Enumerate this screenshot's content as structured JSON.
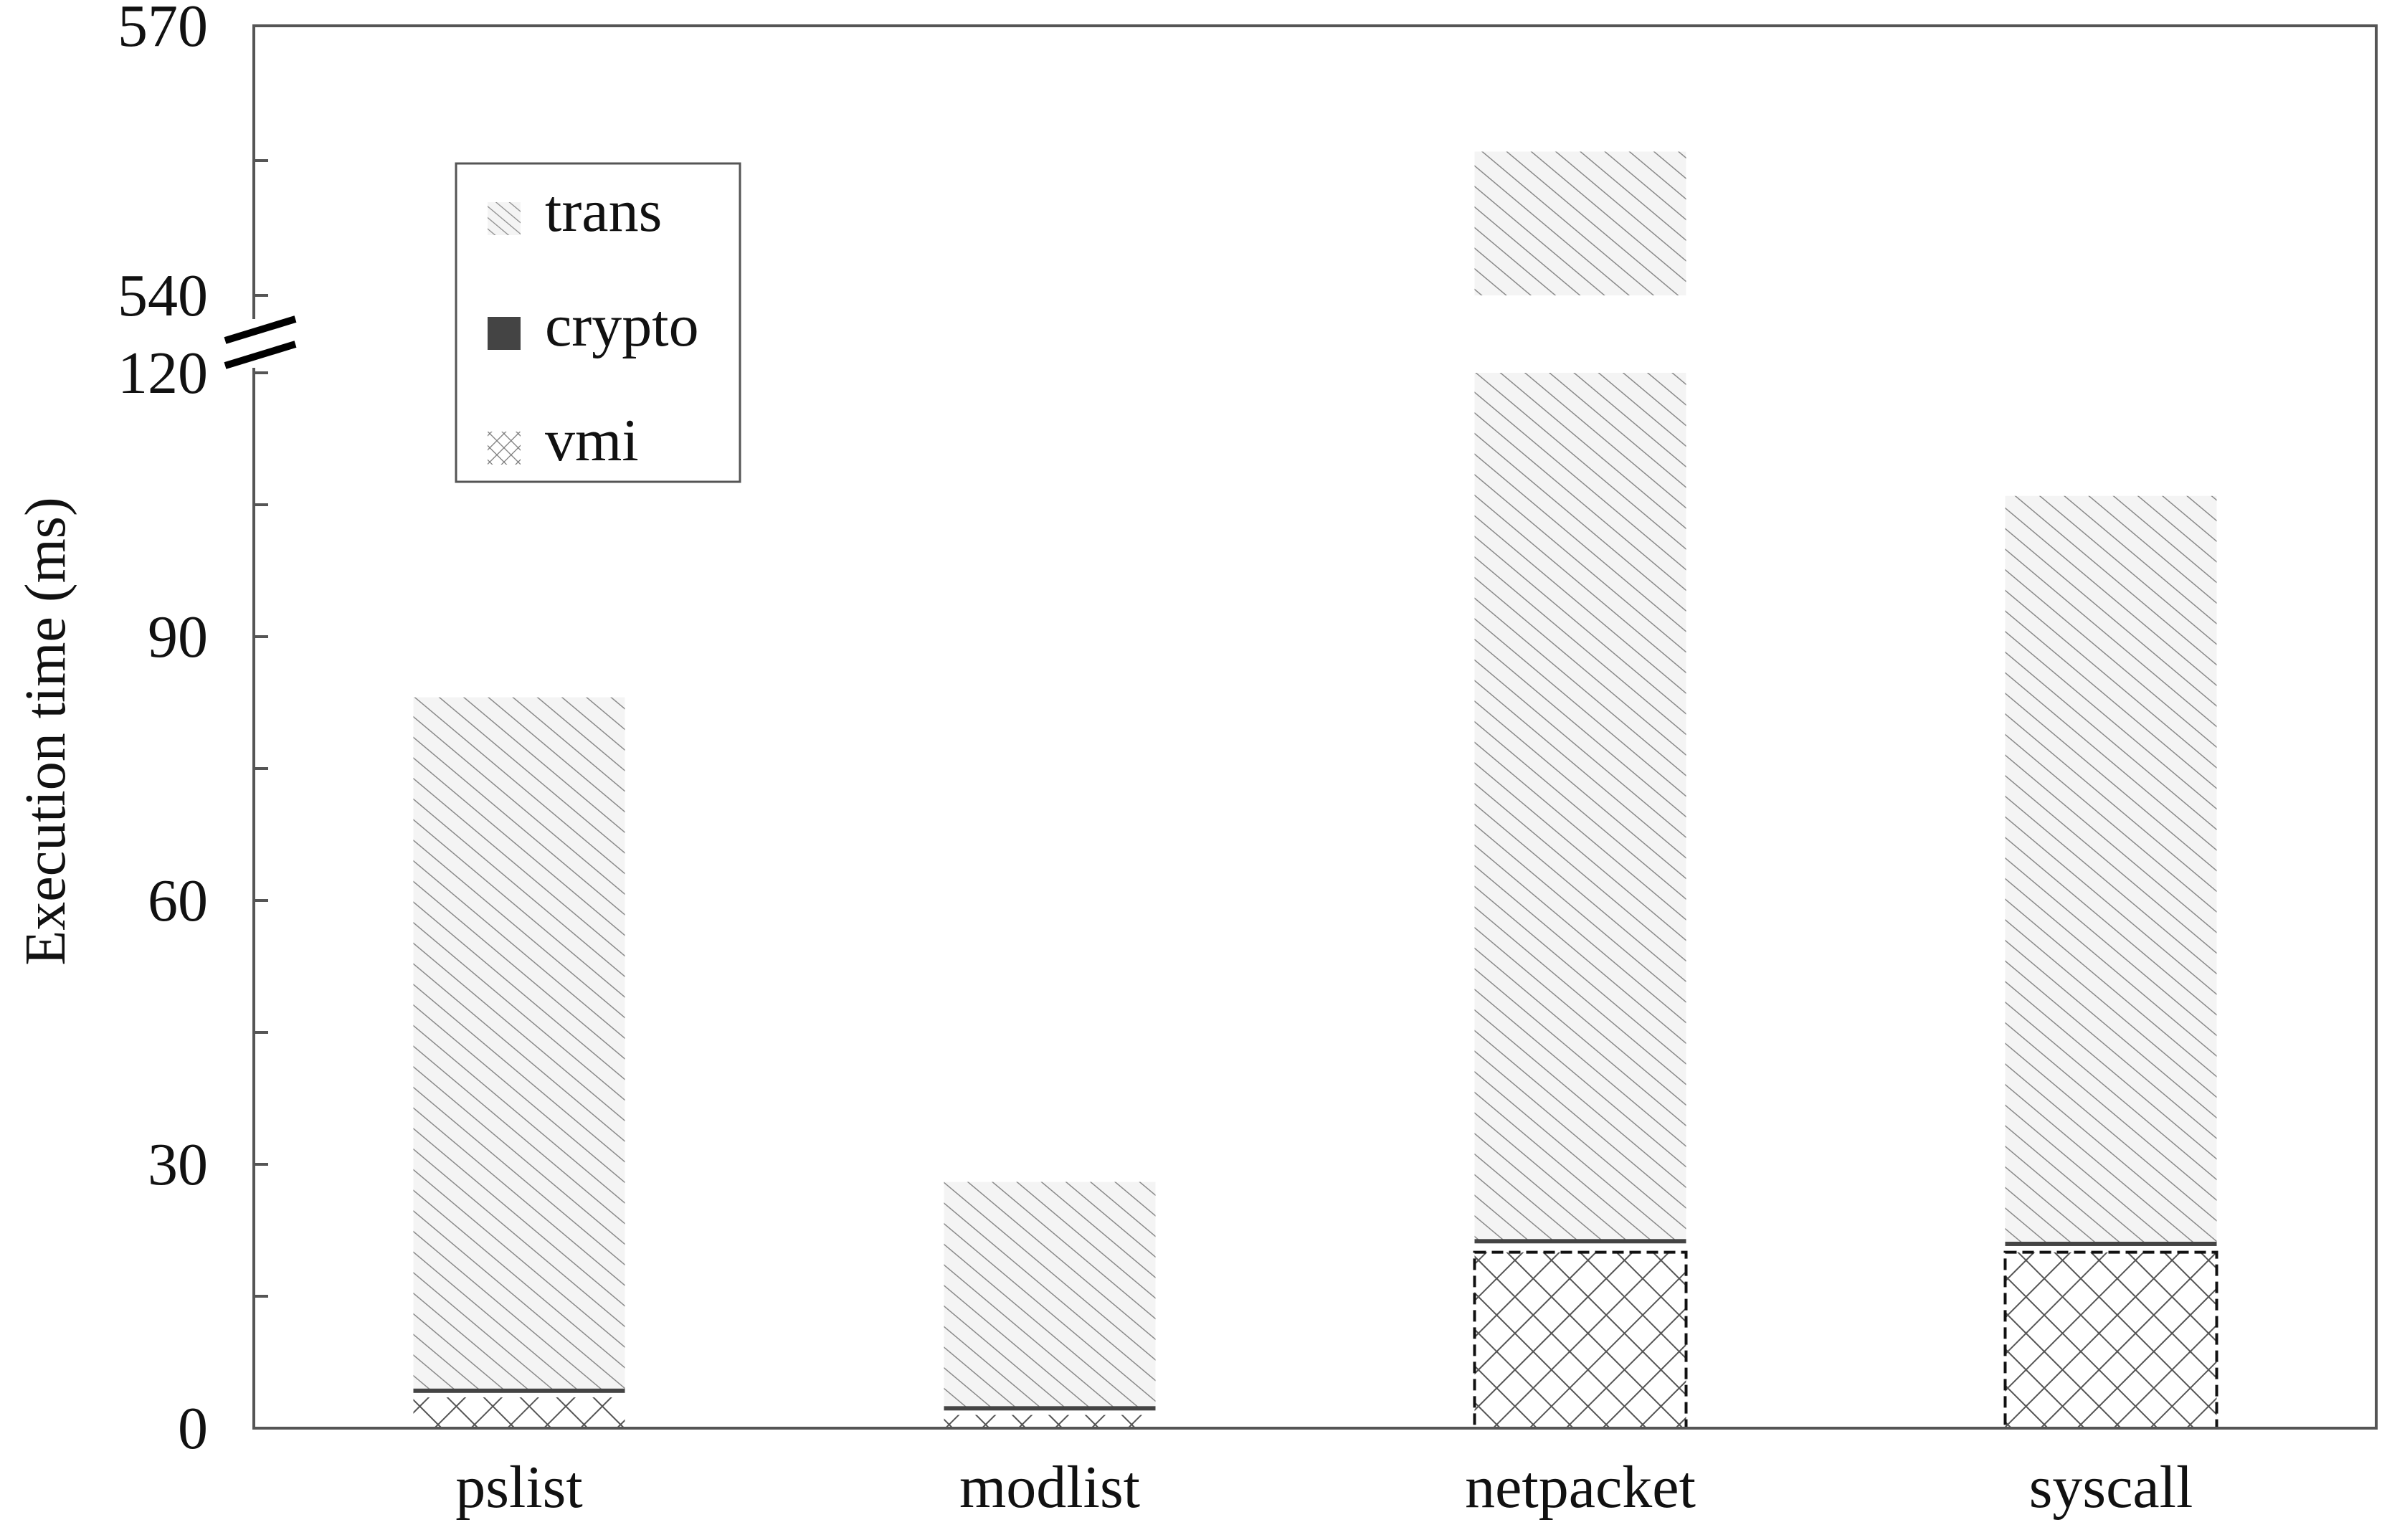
{
  "chart_data": {
    "type": "bar",
    "stacked": true,
    "categories": [
      "pslist",
      "modlist",
      "netpacket",
      "syscall"
    ],
    "series": [
      {
        "name": "vmi",
        "values": [
          3.5,
          1.5,
          20,
          20
        ],
        "color": "#888888",
        "pattern": "crosshatch"
      },
      {
        "name": "crypto",
        "values": [
          1.0,
          1.0,
          1.5,
          1.2
        ],
        "color": "#444444",
        "pattern": "solid"
      },
      {
        "name": "trans",
        "values": [
          78.6,
          25.5,
          534.5,
          84.8
        ],
        "color": "#d8d8d8",
        "pattern": "diagonal"
      }
    ],
    "ylabel": "Execution time (ms)",
    "xlabel": "",
    "ylim": [
      0,
      570
    ],
    "axis_break": [
      120,
      540
    ],
    "lower_ticks": [
      0,
      30,
      60,
      90,
      120
    ],
    "upper_ticks": [
      540,
      570
    ],
    "legend_position": "top-left",
    "legend_order": [
      "trans",
      "crypto",
      "vmi"
    ],
    "grid": false
  }
}
